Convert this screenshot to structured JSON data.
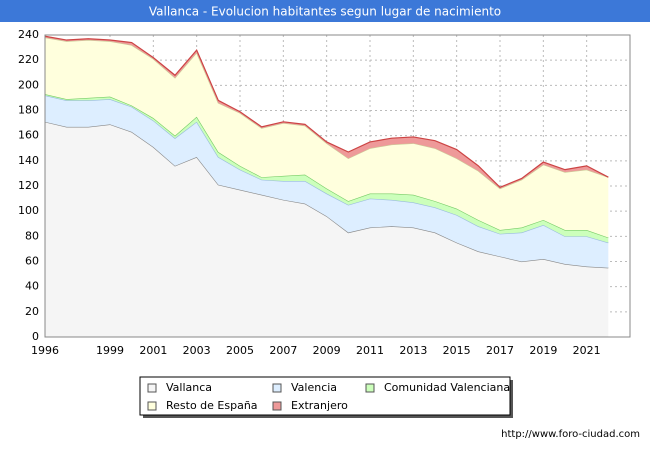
{
  "chart_data": {
    "type": "area",
    "stacked": true,
    "title": "Vallanca - Evolucion habitantes segun lugar de nacimiento",
    "source": "http://www.foro-ciudad.com",
    "x": [
      1996,
      1997,
      1998,
      1999,
      2000,
      2001,
      2002,
      2003,
      2004,
      2005,
      2006,
      2007,
      2008,
      2009,
      2010,
      2011,
      2012,
      2013,
      2014,
      2015,
      2016,
      2017,
      2018,
      2019,
      2020,
      2021,
      2022
    ],
    "xlim": [
      1996,
      2023
    ],
    "xticks": [
      1996,
      1999,
      2001,
      2003,
      2005,
      2007,
      2009,
      2011,
      2013,
      2015,
      2017,
      2019,
      2021
    ],
    "ylim": [
      0,
      240
    ],
    "yticks": [
      0,
      20,
      40,
      60,
      80,
      100,
      120,
      140,
      160,
      180,
      200,
      220,
      240
    ],
    "grid": true,
    "series": [
      {
        "name": "Vallanca",
        "color": "#f5f5f5",
        "line": "#888888",
        "values": [
          171,
          167,
          167,
          169,
          163,
          151,
          136,
          143,
          121,
          117,
          113,
          109,
          106,
          96,
          83,
          87,
          88,
          87,
          83,
          75,
          68,
          64,
          60,
          62,
          58,
          56,
          55
        ]
      },
      {
        "name": "Valencia",
        "color": "#ddeeff",
        "line": "#99bbdd",
        "values": [
          21,
          21,
          21,
          20,
          20,
          21,
          22,
          28,
          22,
          16,
          12,
          15,
          18,
          18,
          22,
          23,
          21,
          20,
          20,
          22,
          20,
          18,
          23,
          27,
          22,
          24,
          20
        ]
      },
      {
        "name": "Comunidad Valenciana",
        "color": "#ccffbb",
        "line": "#77cc66",
        "values": [
          1,
          1,
          2,
          2,
          1,
          2,
          2,
          4,
          4,
          3,
          2,
          4,
          5,
          4,
          3,
          4,
          5,
          6,
          5,
          5,
          5,
          3,
          4,
          4,
          5,
          5,
          4
        ]
      },
      {
        "name": "Resto de España",
        "color": "#ffffdd",
        "line": "#cccc99",
        "values": [
          45,
          46,
          46,
          44,
          48,
          47,
          46,
          51,
          39,
          42,
          39,
          42,
          39,
          36,
          34,
          36,
          39,
          41,
          42,
          40,
          39,
          33,
          38,
          44,
          46,
          48,
          48
        ]
      },
      {
        "name": "Extranjero",
        "color": "#ee9999",
        "line": "#cc4444",
        "values": [
          1,
          1,
          1,
          1,
          2,
          1,
          2,
          2,
          2,
          1,
          1,
          1,
          1,
          1,
          5,
          5,
          5,
          5,
          6,
          7,
          4,
          1,
          1,
          2,
          2,
          3,
          0
        ]
      }
    ]
  }
}
